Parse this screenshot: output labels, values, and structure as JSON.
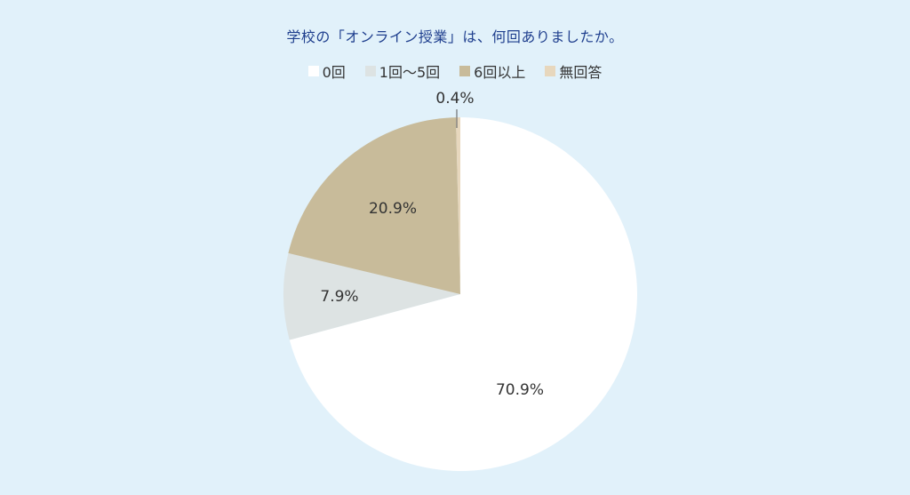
{
  "chart_data": {
    "type": "pie",
    "title": "学校の「オンライン授業」は、何回ありましたか。",
    "legend_position": "top",
    "categories": [
      "0回",
      "1回〜5回",
      "6回以上",
      "無回答"
    ],
    "values": [
      70.9,
      7.9,
      20.9,
      0.4
    ],
    "labels": [
      "70.9%",
      "7.9%",
      "20.9%",
      "0.4%"
    ],
    "colors": [
      "#ffffff",
      "#dde3e3",
      "#c8bb9a",
      "#e7d7bd"
    ]
  }
}
